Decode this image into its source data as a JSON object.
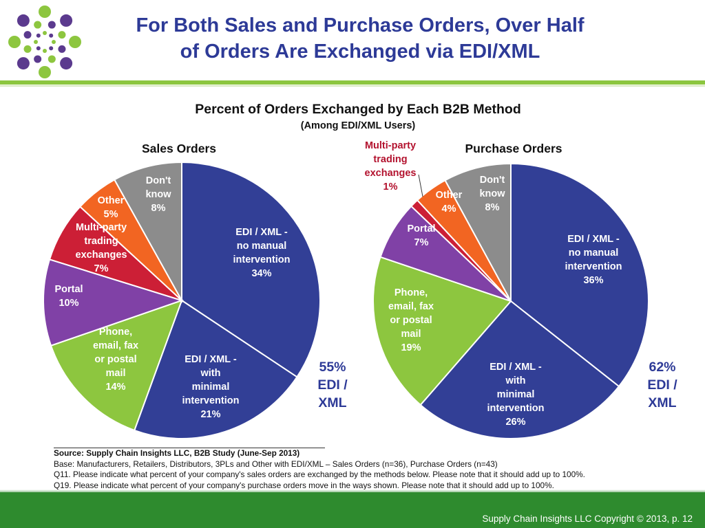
{
  "slide": {
    "title_line1": "For Both Sales and Purchase Orders, Over Half",
    "title_line2": "of Orders Are Exchanged via EDI/XML",
    "copyright": "Supply Chain Insights LLC Copyright © 2013, p. 12"
  },
  "colors": {
    "title": "#2d3a97",
    "edi_no_manual": "#323f96",
    "edi_minimal": "#323f96",
    "phone_email": "#8dc63f",
    "portal": "#8041a6",
    "multi_party": "#cc1f36",
    "other": "#f26522",
    "dont_know": "#8c8c8c",
    "accent_rule": "#8cc63f",
    "footer": "#2e8b2e"
  },
  "chart_data": [
    {
      "type": "pie",
      "title": "Percent of Orders Exchanged by Each B2B Method",
      "subtitle": "(Among EDI/XML Users)",
      "name": "Sales Orders",
      "slices": [
        {
          "key": "edi_no_manual",
          "label": "EDI / XML - no manual intervention",
          "lines": [
            "EDI / XML -",
            "no manual",
            "intervention"
          ],
          "pct_label": "34%",
          "value": 34
        },
        {
          "key": "edi_minimal",
          "label": "EDI / XML - with minimal intervention",
          "lines": [
            "EDI / XML -",
            "with",
            "minimal",
            "intervention"
          ],
          "pct_label": "21%",
          "value": 21
        },
        {
          "key": "phone_email",
          "label": "Phone, email, fax or postal mail",
          "lines": [
            "Phone,",
            "email, fax",
            "or postal",
            "mail"
          ],
          "pct_label": "14%",
          "value": 14
        },
        {
          "key": "portal",
          "label": "Portal",
          "lines": [
            "Portal"
          ],
          "pct_label": "10%",
          "value": 10
        },
        {
          "key": "multi_party",
          "label": "Multi-party trading exchanges",
          "lines": [
            "Multi-party",
            "trading",
            "exchanges"
          ],
          "pct_label": "7%",
          "value": 7
        },
        {
          "key": "other",
          "label": "Other",
          "lines": [
            "Other"
          ],
          "pct_label": "5%",
          "value": 5
        },
        {
          "key": "dont_know",
          "label": "Don't know",
          "lines": [
            "Don't",
            "know"
          ],
          "pct_label": "8%",
          "value": 8
        }
      ],
      "callout": {
        "line1": "55%",
        "line2": "EDI /",
        "line3": "XML"
      }
    },
    {
      "type": "pie",
      "name": "Purchase Orders",
      "slices": [
        {
          "key": "edi_no_manual",
          "label": "EDI / XML - no manual intervention",
          "lines": [
            "EDI / XML -",
            "no manual",
            "intervention"
          ],
          "pct_label": "36%",
          "value": 36
        },
        {
          "key": "edi_minimal",
          "label": "EDI / XML - with minimal intervention",
          "lines": [
            "EDI / XML -",
            "with",
            "minimal",
            "intervention"
          ],
          "pct_label": "26%",
          "value": 26
        },
        {
          "key": "phone_email",
          "label": "Phone, email, fax or postal mail",
          "lines": [
            "Phone,",
            "email, fax",
            "or postal",
            "mail"
          ],
          "pct_label": "19%",
          "value": 19
        },
        {
          "key": "portal",
          "label": "Portal",
          "lines": [
            "Portal"
          ],
          "pct_label": "7%",
          "value": 7
        },
        {
          "key": "multi_party",
          "label": "Multi-party trading exchanges",
          "lines": [
            "Multi-party",
            "trading",
            "exchanges"
          ],
          "pct_label": "1%",
          "value": 1
        },
        {
          "key": "other",
          "label": "Other",
          "lines": [
            "Other"
          ],
          "pct_label": "4%",
          "value": 4
        },
        {
          "key": "dont_know",
          "label": "Don't know",
          "lines": [
            "Don't",
            "know"
          ],
          "pct_label": "8%",
          "value": 8
        }
      ],
      "callout": {
        "line1": "62%",
        "line2": "EDI /",
        "line3": "XML"
      }
    }
  ],
  "source": {
    "line1": "Source: Supply Chain Insights LLC, B2B Study (June-Sep 2013)",
    "line2": "Base: Manufacturers, Retailers, Distributors, 3PLs and Other with EDI/XML – Sales Orders (n=36), Purchase Orders (n=43)",
    "line3": "Q11. Please indicate what percent of your company's sales orders are exchanged by the methods below. Please note that it should add up to 100%.",
    "line4": "Q19. Please indicate what percent of your company's purchase orders move in the ways shown. Please note that it should add up to 100%."
  }
}
